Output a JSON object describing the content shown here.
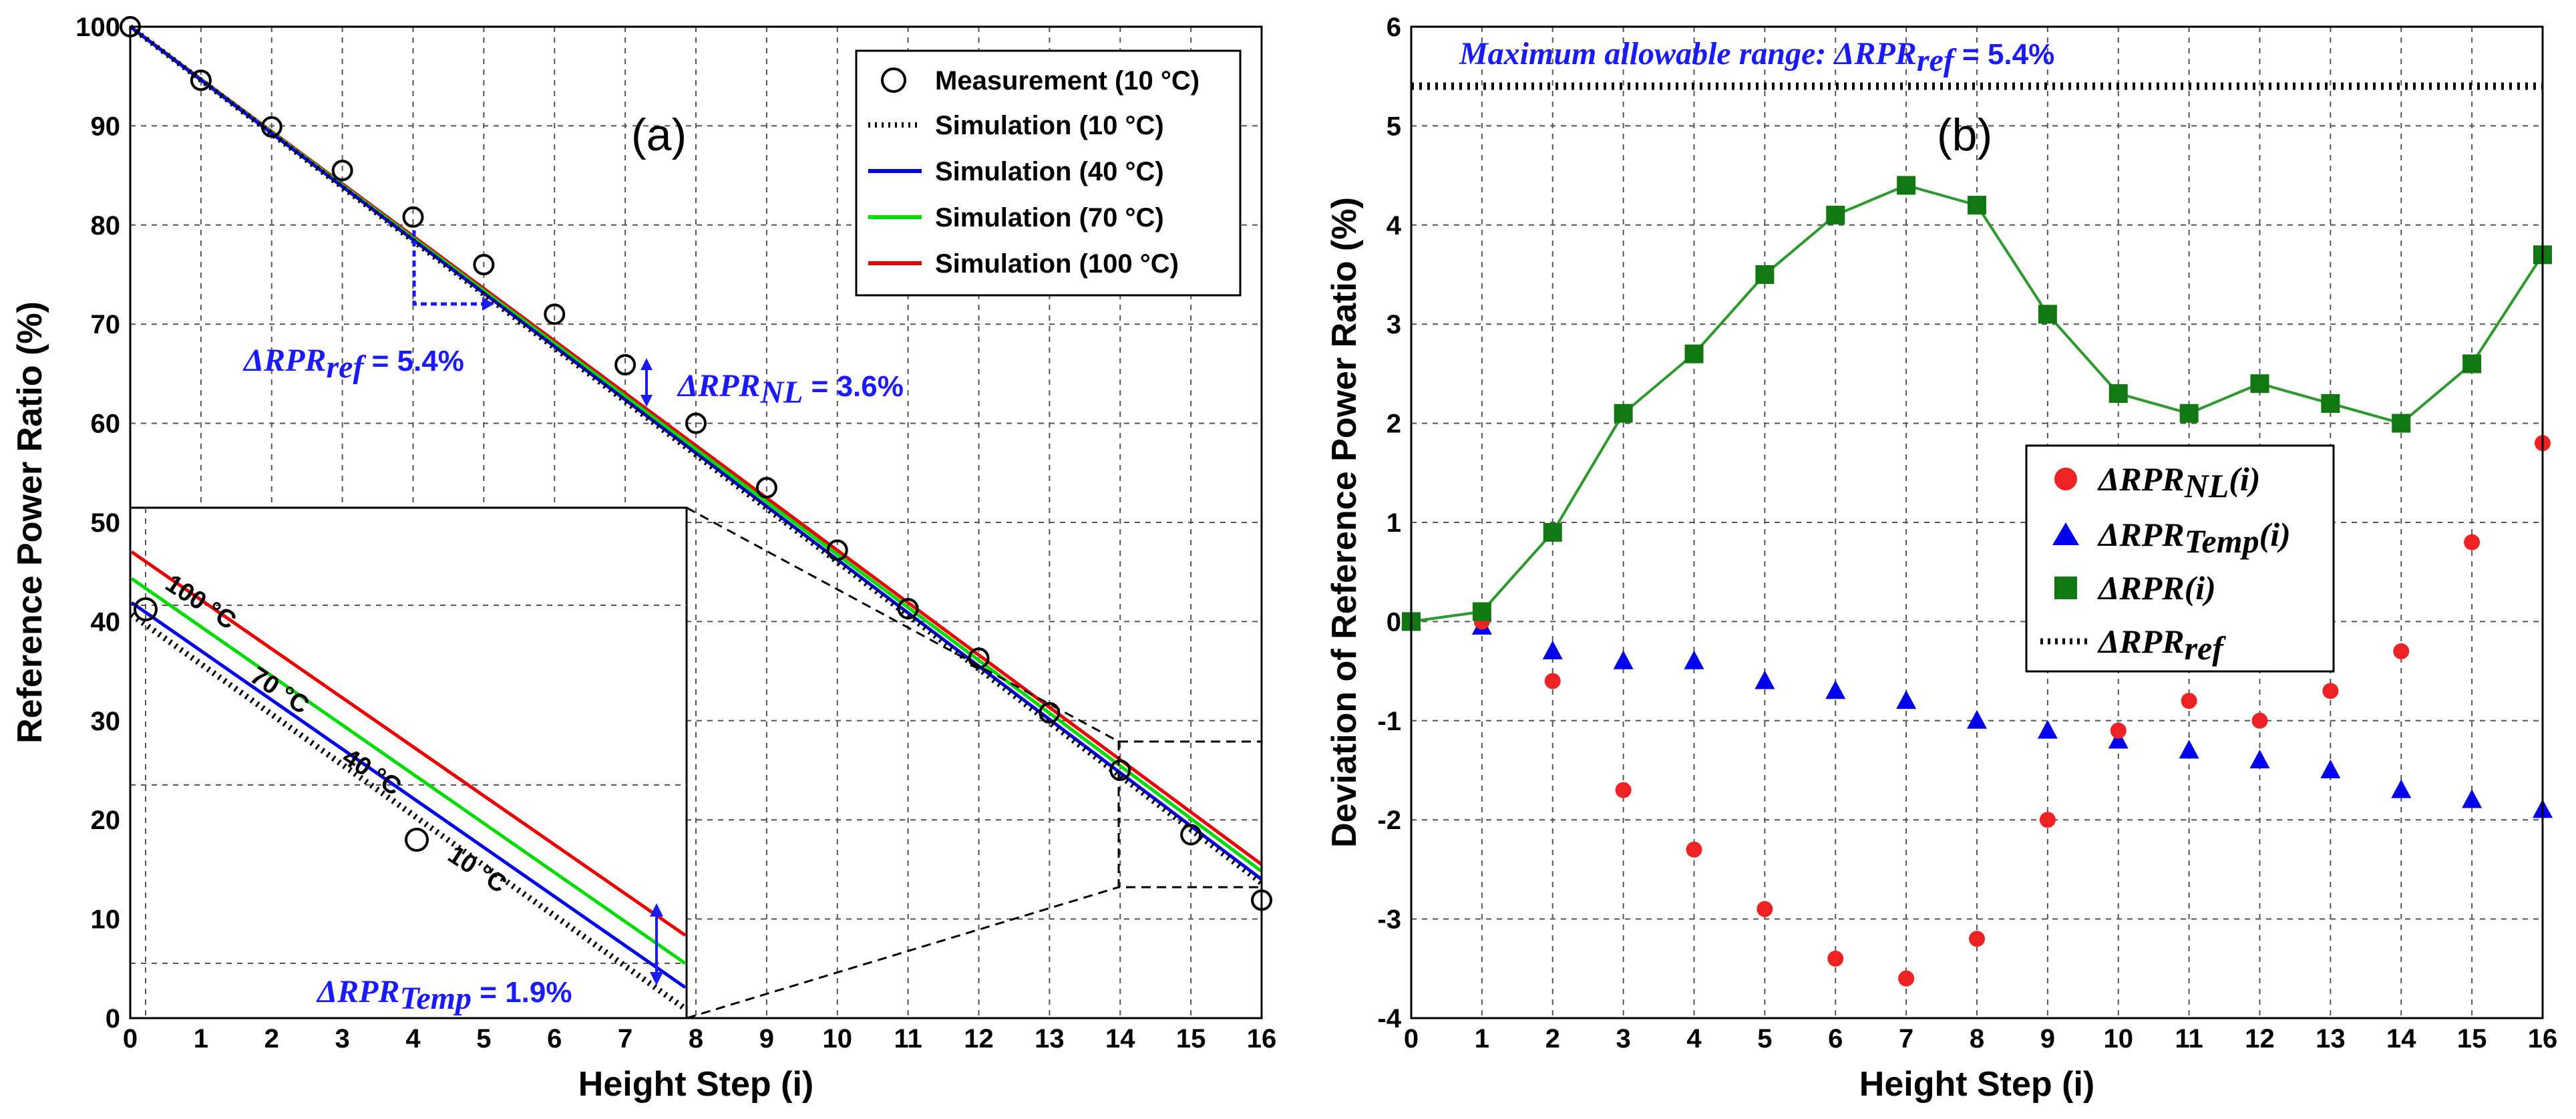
{
  "chart_data": [
    {
      "panel": "(a)",
      "type": "line",
      "xlabel": "Height Step (i)",
      "ylabel": "Reference Power Ratio (%)",
      "xlim": [
        0,
        16
      ],
      "ylim": [
        0,
        100
      ],
      "xticks": [
        "0",
        "1",
        "2",
        "3",
        "4",
        "5",
        "6",
        "7",
        "8",
        "9",
        "10",
        "11",
        "12",
        "13",
        "14",
        "15",
        "16"
      ],
      "yticks": [
        "0",
        "10",
        "20",
        "30",
        "40",
        "50",
        "60",
        "70",
        "80",
        "90",
        "100"
      ],
      "measurement": {
        "name": "Measurement (10 °C)",
        "x": [
          0,
          1,
          2,
          3,
          4,
          5,
          6,
          7,
          8,
          9,
          10,
          11,
          12,
          13,
          14,
          15,
          16
        ],
        "y": [
          100,
          94.6,
          89.9,
          85.5,
          80.8,
          76.0,
          71.0,
          65.9,
          60.0,
          53.5,
          47.2,
          41.3,
          36.3,
          30.8,
          25.0,
          18.5,
          11.9
        ]
      },
      "series": [
        {
          "name": "Simulation (10 °C)",
          "color": "#000000",
          "style": "dotted",
          "y_start": 100,
          "y_end": 13.6
        },
        {
          "name": "Simulation (40 °C)",
          "color": "#0000ee",
          "style": "solid",
          "y_start": 100,
          "y_end": 14.0
        },
        {
          "name": "Simulation (70 °C)",
          "color": "#00dd00",
          "style": "solid",
          "y_start": 100,
          "y_end": 14.8
        },
        {
          "name": "Simulation (100 °C)",
          "color": "#ee0000",
          "style": "solid",
          "y_start": 100,
          "y_end": 15.5
        }
      ],
      "annotations": {
        "dref_sym": "ΔRPR",
        "dref_sub": "ref",
        "dref_val": " = 5.4%",
        "dnl_sym": "ΔRPR",
        "dnl_sub": "NL",
        "dnl_val": " = 3.6%",
        "dtemp_sym": "ΔRPR",
        "dtemp_sub": "Temp",
        "dtemp_val": " = 1.9%"
      },
      "inset": {
        "labels": [
          "100 °C",
          "70 °C",
          "40 °C",
          "10 °C"
        ],
        "measurement_points": [
          {
            "x": 0,
            "y": 41
          },
          {
            "x": 4,
            "y": 18
          }
        ]
      }
    },
    {
      "panel": "(b)",
      "type": "scatter",
      "xlabel": "Height Step (i)",
      "ylabel": "Deviation of Reference Power Ratio (%)",
      "xlim": [
        0,
        16
      ],
      "ylim": [
        -4,
        6
      ],
      "xticks": [
        "0",
        "1",
        "2",
        "3",
        "4",
        "5",
        "6",
        "7",
        "8",
        "9",
        "10",
        "11",
        "12",
        "13",
        "14",
        "15",
        "16"
      ],
      "yticks": [
        "-4",
        "-3",
        "-2",
        "-1",
        "0",
        "1",
        "2",
        "3",
        "4",
        "5",
        "6"
      ],
      "x": [
        0,
        1,
        2,
        3,
        4,
        5,
        6,
        7,
        8,
        9,
        10,
        11,
        12,
        13,
        14,
        15,
        16
      ],
      "series": [
        {
          "name": "ΔRPR_NL(i)",
          "sym": "ΔRPR",
          "sub": "NL",
          "tail": "(i)",
          "color": "#ee2222",
          "marker": "circle",
          "values": [
            0,
            0.0,
            -0.6,
            -1.7,
            -2.3,
            -2.9,
            -3.4,
            -3.6,
            -3.2,
            -2.0,
            -1.1,
            -0.8,
            -1.0,
            -0.7,
            -0.3,
            0.8,
            1.8
          ]
        },
        {
          "name": "ΔRPR_Temp(i)",
          "sym": "ΔRPR",
          "sub": "Temp",
          "tail": "(i)",
          "color": "#0000ee",
          "marker": "triangle",
          "values": [
            0,
            -0.05,
            -0.3,
            -0.4,
            -0.4,
            -0.6,
            -0.7,
            -0.8,
            -1.0,
            -1.1,
            -1.2,
            -1.3,
            -1.4,
            -1.5,
            -1.7,
            -1.8,
            -1.9
          ]
        },
        {
          "name": "ΔRPR(i)",
          "sym": "ΔRPR",
          "sub": "",
          "tail": "(i)",
          "color": "#117711",
          "marker": "square",
          "values": [
            0,
            0.1,
            0.9,
            2.1,
            2.7,
            3.5,
            4.1,
            4.4,
            4.2,
            3.1,
            2.3,
            2.1,
            2.4,
            2.2,
            2.0,
            2.6,
            3.7
          ]
        },
        {
          "name": "ΔRPR_ref",
          "sym": "ΔRPR",
          "sub": "ref",
          "tail": "",
          "color": "#000000",
          "marker": "dotted-line",
          "constant": 5.4
        }
      ],
      "title_annotation": {
        "text": "Maximum allowable  range: ",
        "sym": "ΔRPR",
        "sub": "ref",
        "val": " = 5.4%"
      }
    }
  ]
}
